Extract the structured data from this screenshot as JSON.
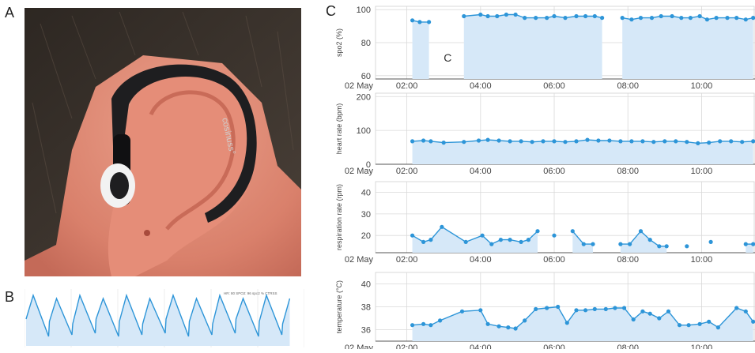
{
  "panels": {
    "a": "A",
    "b": "B",
    "c": "C"
  },
  "photo": {
    "device_brand": "cosinuss°",
    "skin_color": "#e79a86",
    "hair_color": "#3a332c",
    "device_color": "#1e1e20",
    "earbud_color": "#f2f2f2"
  },
  "ecg_header": "HR: 80 SPO2: 96  spo2 %  CTRSS",
  "colors": {
    "series": "#2d95d8",
    "fill": "#d6e8f8",
    "grid": "#d9d9d9",
    "axis": "#555555"
  },
  "x_ticks": [
    "02 May",
    "02:00",
    "04:00",
    "06:00",
    "08:00",
    "10:00"
  ],
  "chart_data": [
    {
      "type": "area",
      "ylabel": "spo2 (%)",
      "yticks": [
        "100",
        "80",
        "60"
      ],
      "ylim": [
        58,
        102
      ],
      "annotation": "C",
      "series": [
        {
          "values": [
            [
              2.15,
              93.5
            ],
            [
              2.35,
              92.5
            ],
            [
              2.6,
              92.5
            ]
          ]
        },
        {
          "values": [
            [
              3.55,
              96
            ],
            [
              4.0,
              97
            ],
            [
              4.2,
              96
            ],
            [
              4.45,
              96
            ],
            [
              4.7,
              97
            ],
            [
              4.95,
              97
            ],
            [
              5.2,
              95
            ],
            [
              5.5,
              95
            ],
            [
              5.8,
              95
            ],
            [
              6.0,
              96
            ],
            [
              6.3,
              95
            ],
            [
              6.6,
              96
            ],
            [
              6.85,
              96
            ],
            [
              7.1,
              96
            ],
            [
              7.3,
              95
            ]
          ]
        },
        {
          "values": [
            [
              7.85,
              95
            ],
            [
              8.1,
              94
            ],
            [
              8.35,
              95
            ],
            [
              8.65,
              95
            ],
            [
              8.9,
              96
            ],
            [
              9.2,
              96
            ],
            [
              9.45,
              95
            ],
            [
              9.7,
              95
            ],
            [
              9.95,
              96
            ],
            [
              10.15,
              94
            ],
            [
              10.4,
              95
            ],
            [
              10.7,
              95
            ],
            [
              10.95,
              95
            ],
            [
              11.2,
              94
            ],
            [
              11.4,
              95
            ]
          ]
        }
      ]
    },
    {
      "type": "area",
      "ylabel": "heart rate (bpm)",
      "yticks": [
        "200",
        "100",
        "0"
      ],
      "ylim": [
        0,
        210
      ],
      "series": [
        {
          "values": [
            [
              2.15,
              68
            ],
            [
              2.45,
              70
            ],
            [
              2.65,
              68
            ],
            [
              3.0,
              64
            ],
            [
              3.55,
              66
            ],
            [
              3.95,
              70
            ],
            [
              4.2,
              72
            ],
            [
              4.5,
              70
            ],
            [
              4.8,
              68
            ],
            [
              5.1,
              68
            ],
            [
              5.4,
              66
            ],
            [
              5.7,
              68
            ],
            [
              6.0,
              68
            ],
            [
              6.3,
              66
            ],
            [
              6.6,
              68
            ],
            [
              6.9,
              72
            ],
            [
              7.2,
              70
            ],
            [
              7.5,
              70
            ],
            [
              7.8,
              68
            ],
            [
              8.1,
              68
            ],
            [
              8.4,
              68
            ],
            [
              8.7,
              66
            ],
            [
              9.0,
              68
            ],
            [
              9.3,
              68
            ],
            [
              9.6,
              66
            ],
            [
              9.9,
              62
            ],
            [
              10.2,
              64
            ],
            [
              10.5,
              68
            ],
            [
              10.8,
              68
            ],
            [
              11.1,
              66
            ],
            [
              11.4,
              68
            ]
          ]
        }
      ]
    },
    {
      "type": "area",
      "ylabel": "respiration rate (rpm)",
      "yticks": [
        "40",
        "30",
        "20"
      ],
      "ylim": [
        12,
        45
      ],
      "series": [
        {
          "values": [
            [
              2.15,
              20
            ],
            [
              2.45,
              17
            ],
            [
              2.65,
              18
            ],
            [
              2.95,
              24
            ],
            [
              3.6,
              17
            ],
            [
              4.05,
              20
            ],
            [
              4.3,
              16
            ],
            [
              4.55,
              18
            ],
            [
              4.8,
              18
            ],
            [
              5.1,
              17
            ],
            [
              5.3,
              18
            ],
            [
              5.55,
              22
            ]
          ]
        },
        {
          "values": [
            [
              6.0,
              20
            ]
          ]
        },
        {
          "values": [
            [
              6.5,
              22
            ],
            [
              6.8,
              16
            ],
            [
              7.05,
              16
            ]
          ]
        },
        {
          "values": [
            [
              7.8,
              16
            ],
            [
              8.05,
              16
            ],
            [
              8.35,
              22
            ],
            [
              8.6,
              18
            ],
            [
              8.85,
              15
            ],
            [
              9.05,
              15
            ]
          ]
        },
        {
          "values": [
            [
              9.6,
              15
            ]
          ]
        },
        {
          "values": [
            [
              10.25,
              17
            ]
          ]
        },
        {
          "values": [
            [
              11.2,
              16
            ],
            [
              11.4,
              16
            ]
          ]
        }
      ]
    },
    {
      "type": "area",
      "ylabel": "temperature (°C)",
      "yticks": [
        "40",
        "38",
        "36"
      ],
      "ylim": [
        35,
        41
      ],
      "series": [
        {
          "values": [
            [
              2.15,
              36.4
            ],
            [
              2.45,
              36.5
            ],
            [
              2.65,
              36.4
            ],
            [
              2.9,
              36.8
            ],
            [
              3.5,
              37.6
            ],
            [
              4.0,
              37.7
            ],
            [
              4.2,
              36.5
            ],
            [
              4.5,
              36.3
            ],
            [
              4.75,
              36.2
            ],
            [
              4.95,
              36.1
            ],
            [
              5.2,
              36.8
            ],
            [
              5.5,
              37.8
            ],
            [
              5.8,
              37.9
            ],
            [
              6.1,
              38.0
            ],
            [
              6.35,
              36.6
            ],
            [
              6.6,
              37.7
            ],
            [
              6.85,
              37.7
            ],
            [
              7.1,
              37.8
            ],
            [
              7.4,
              37.8
            ],
            [
              7.65,
              37.9
            ],
            [
              7.9,
              37.9
            ],
            [
              8.15,
              36.9
            ],
            [
              8.4,
              37.6
            ],
            [
              8.6,
              37.4
            ],
            [
              8.85,
              37.0
            ],
            [
              9.1,
              37.6
            ],
            [
              9.4,
              36.4
            ],
            [
              9.65,
              36.4
            ],
            [
              9.95,
              36.5
            ],
            [
              10.2,
              36.7
            ],
            [
              10.45,
              36.2
            ],
            [
              10.95,
              37.9
            ],
            [
              11.2,
              37.6
            ],
            [
              11.4,
              36.7
            ]
          ]
        }
      ]
    }
  ]
}
